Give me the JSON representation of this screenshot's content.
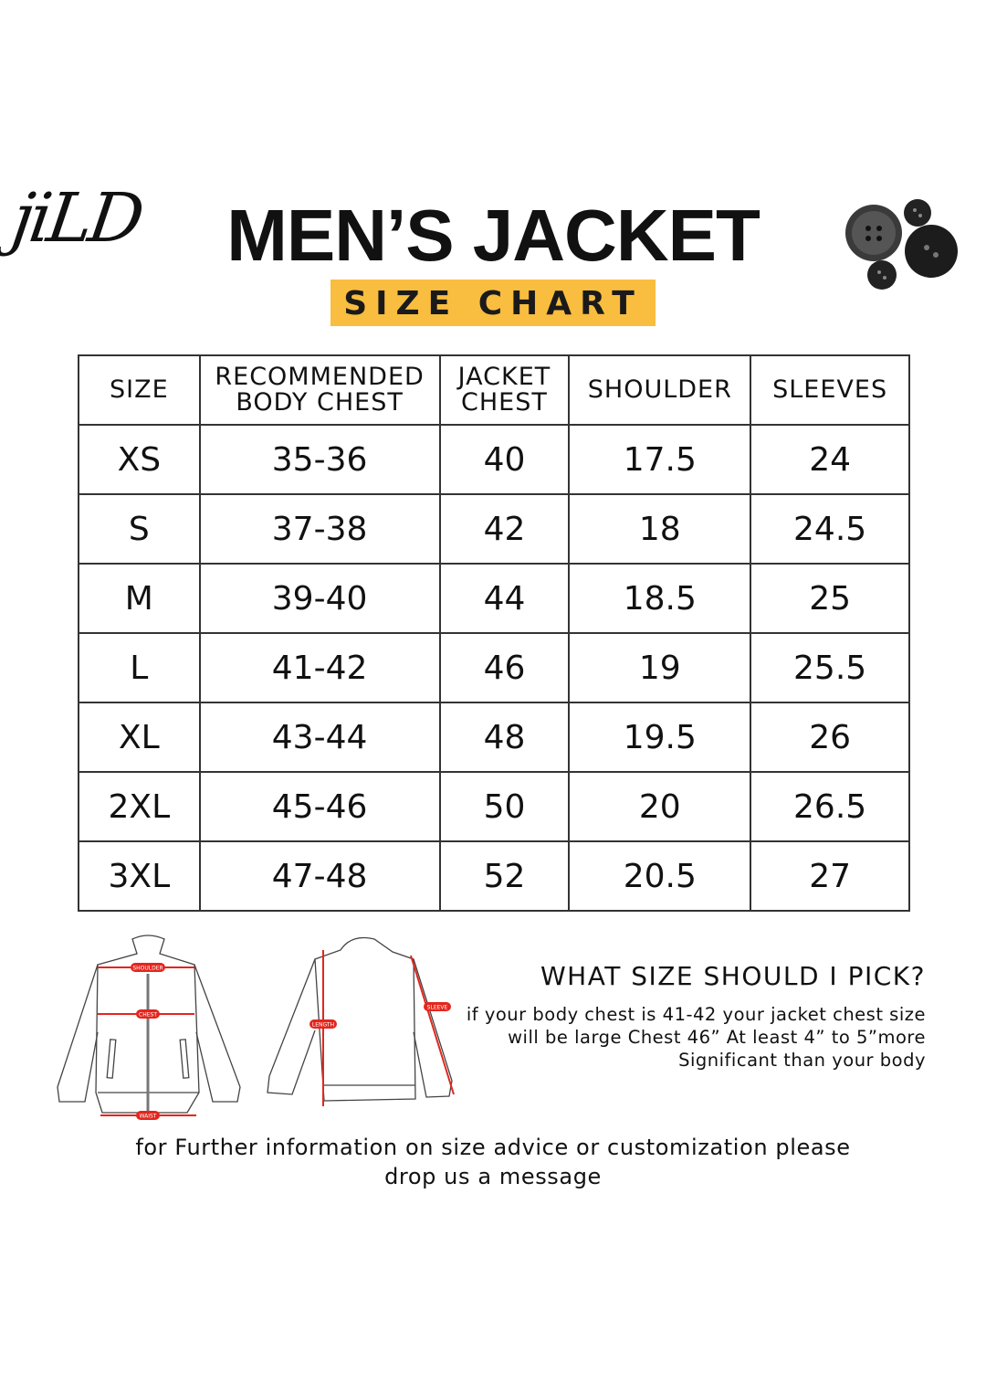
{
  "brand": {
    "logo_text": "jiLD"
  },
  "header": {
    "title": "MEN’S JACKET",
    "subtitle": "SIZE CHART"
  },
  "table": {
    "columns": [
      "SIZE",
      "RECOMMENDED BODY CHEST",
      "JACKET CHEST",
      "SHOULDER",
      "SLEEVES"
    ],
    "rows": [
      [
        "XS",
        "35-36",
        "40",
        "17.5",
        "24"
      ],
      [
        "S",
        "37-38",
        "42",
        "18",
        "24.5"
      ],
      [
        "M",
        "39-40",
        "44",
        "18.5",
        "25"
      ],
      [
        "L",
        "41-42",
        "46",
        "19",
        "25.5"
      ],
      [
        "XL",
        "43-44",
        "48",
        "19.5",
        "26"
      ],
      [
        "2XL",
        "45-46",
        "50",
        "20",
        "26.5"
      ],
      [
        "3XL",
        "47-48",
        "52",
        "20.5",
        "27"
      ]
    ]
  },
  "diagram": {
    "labels": {
      "shoulder": "SHOULDER",
      "chest": "CHEST",
      "waist": "WAIST",
      "length": "LENGTH",
      "sleeve": "SLEEVE"
    },
    "accent": "#e3261e"
  },
  "advice": {
    "title": "WHAT SIZE SHOULD I PICK?",
    "lines": [
      "if your body chest is 41-42 your jacket chest size",
      "will be large Chest 46” At least 4” to 5”more",
      "Significant than your body"
    ]
  },
  "footer": {
    "lines": [
      "for Further information on size advice or customization please",
      "drop us a message"
    ]
  },
  "colors": {
    "highlight": "#f9bd3f"
  }
}
